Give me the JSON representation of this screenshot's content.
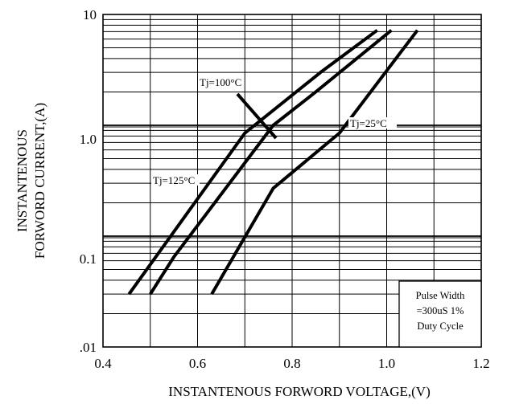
{
  "chart_data": {
    "type": "line",
    "title": "",
    "xlabel": "INSTANTENOUS FORWORD VOLTAGE,(V)",
    "ylabel_lines": [
      "INSTANTENOUS",
      "FORWORD CURRENT,(A)"
    ],
    "xlim": [
      0.4,
      1.2
    ],
    "ylim": [
      0.01,
      10
    ],
    "y_scale": "log",
    "grid": true,
    "x_ticks": [
      0.4,
      0.6,
      0.8,
      1.0,
      1.2
    ],
    "x_tick_labels": [
      "0.4",
      "0.6",
      "0.8",
      "1.0",
      "1.2"
    ],
    "y_ticks": [
      0.01,
      0.1,
      1,
      10
    ],
    "y_tick_labels": [
      ".01",
      "0.1",
      "1.0",
      "10"
    ],
    "series": [
      {
        "name": "Tj=125°C",
        "x": [
          0.455,
          0.7,
          0.86,
          0.98
        ],
        "y": [
          0.03,
          0.85,
          3.0,
          7.2
        ]
      },
      {
        "name": "Tj=100°C",
        "x": [
          0.5,
          0.55,
          0.76,
          0.85,
          1.01
        ],
        "y": [
          0.03,
          0.065,
          1.0,
          2.0,
          7.2
        ]
      },
      {
        "name": "Tj=25°C",
        "x": [
          0.63,
          0.76,
          0.9,
          1.065
        ],
        "y": [
          0.03,
          0.27,
          0.85,
          7.2
        ]
      }
    ],
    "annotations": {
      "tj100": "Tj=100°C",
      "tj125": "Tj=125°C",
      "tj25": "Tj=25°C",
      "note_lines": [
        "Pulse Width",
        "=300uS 1%",
        "Duty Cycle"
      ]
    }
  }
}
